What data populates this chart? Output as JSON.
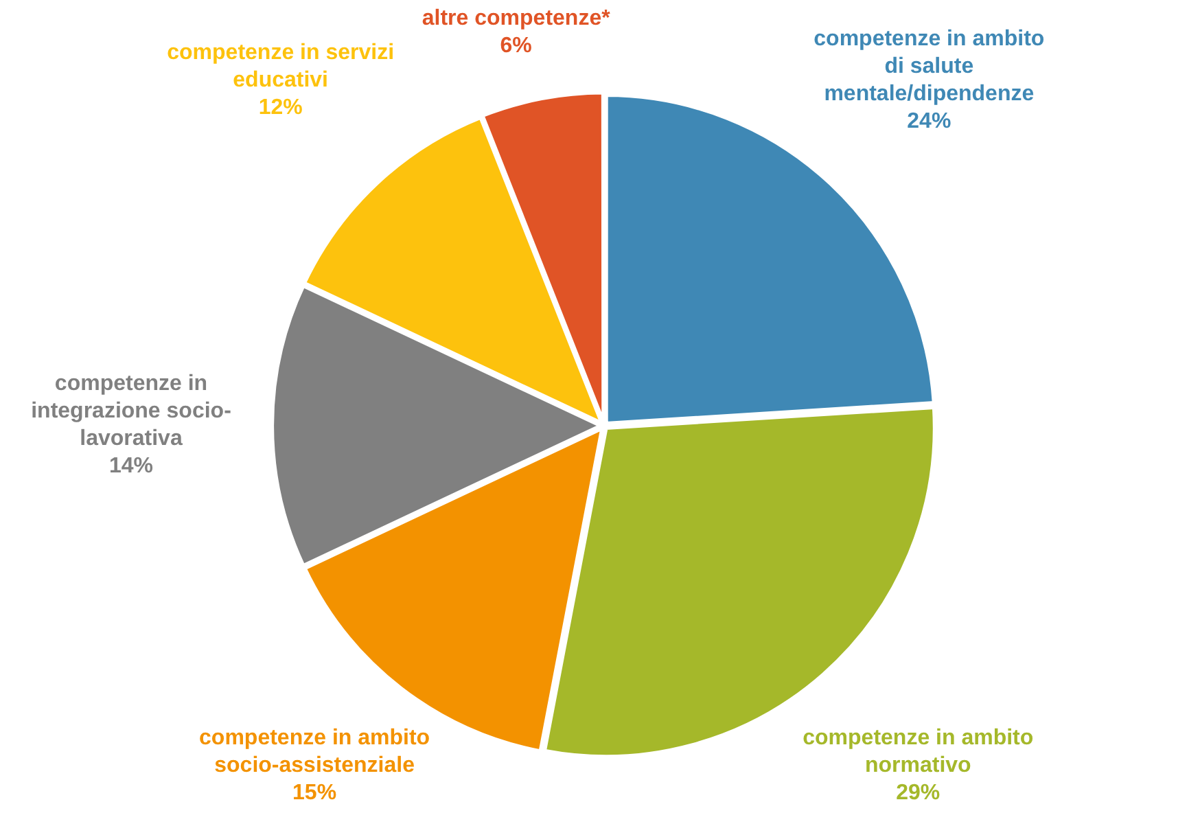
{
  "chart_data": {
    "type": "pie",
    "categories": [
      "competenze in ambito di salute mentale/dipendenze",
      "competenze in ambito normativo",
      "competenze in ambito socio-assistenziale",
      "competenze in integrazione socio-lavorativa",
      "competenze in servizi educativi",
      "altre competenze*"
    ],
    "values": [
      24,
      29,
      15,
      14,
      12,
      6
    ],
    "colors": [
      "#3f88b5",
      "#a5b82a",
      "#f39200",
      "#808080",
      "#fdc20d",
      "#e05426"
    ],
    "value_labels": [
      "24%",
      "29%",
      "15%",
      "14%",
      "12%",
      "6%"
    ],
    "legend": false
  }
}
